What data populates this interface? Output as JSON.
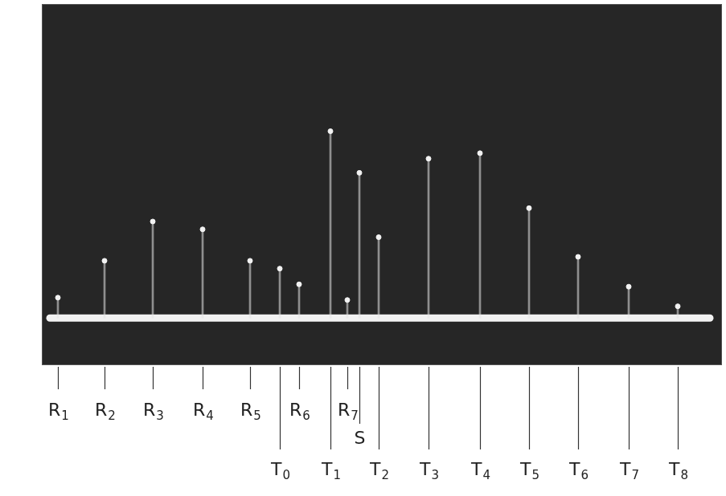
{
  "chart_data": {
    "type": "bar",
    "categories": [
      "R1",
      "R2",
      "R3",
      "R4",
      "R5",
      "T0",
      "R6",
      "T1",
      "R7",
      "S",
      "T2",
      "T3",
      "T4",
      "T5",
      "T6",
      "T7",
      "T8"
    ],
    "x": [
      72,
      130,
      190,
      252,
      311,
      348,
      372,
      411,
      432,
      447,
      471,
      533,
      597,
      658,
      719,
      782,
      843
    ],
    "values": [
      26,
      73,
      123,
      113,
      73,
      63,
      43,
      238,
      23,
      185,
      103,
      203,
      210,
      140,
      78,
      40,
      15
    ],
    "xlim": [
      52,
      898
    ],
    "ylim": [
      -60,
      400
    ],
    "tick_labels": false,
    "grid": false,
    "color": "#f2f2f2",
    "marker": "circle"
  }
}
